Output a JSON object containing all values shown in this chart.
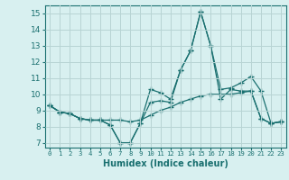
{
  "xlabel": "Humidex (Indice chaleur)",
  "x": [
    0,
    1,
    2,
    3,
    4,
    5,
    6,
    7,
    8,
    9,
    10,
    11,
    12,
    13,
    14,
    15,
    16,
    17,
    18,
    19,
    20,
    21,
    22,
    23
  ],
  "line1": [
    9.3,
    8.9,
    8.8,
    8.5,
    8.4,
    8.4,
    8.1,
    7.0,
    7.0,
    8.2,
    9.5,
    9.6,
    9.5,
    11.5,
    12.7,
    15.1,
    13.0,
    9.7,
    10.3,
    10.2,
    10.2,
    8.5,
    8.2,
    8.3
  ],
  "line2": [
    9.3,
    8.9,
    8.8,
    8.5,
    8.4,
    8.4,
    8.1,
    7.0,
    7.0,
    8.2,
    10.3,
    10.1,
    9.7,
    11.5,
    12.7,
    15.1,
    13.0,
    10.3,
    10.4,
    10.7,
    11.1,
    10.2,
    8.2,
    8.3
  ],
  "line3": [
    9.3,
    8.9,
    8.8,
    8.5,
    8.4,
    8.4,
    8.4,
    8.4,
    8.3,
    8.4,
    8.7,
    9.0,
    9.2,
    9.5,
    9.7,
    9.9,
    10.0,
    10.0,
    10.0,
    10.1,
    10.2,
    8.5,
    8.2,
    8.3
  ],
  "ylim": [
    6.7,
    15.5
  ],
  "yticks": [
    7,
    8,
    9,
    10,
    11,
    12,
    13,
    14,
    15
  ],
  "bg_color": "#d8f0f0",
  "grid_color": "#b8d4d4",
  "line_color": "#1a7070",
  "marker": "+",
  "marker_size": 4
}
